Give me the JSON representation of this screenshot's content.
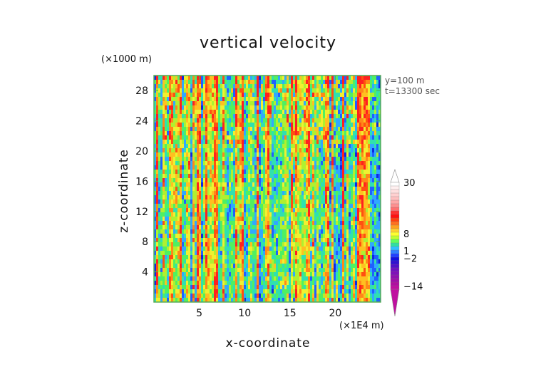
{
  "chart_data": {
    "type": "heatmap",
    "title": "vertical velocity",
    "xlabel": "x-coordinate",
    "ylabel": "z-coordinate",
    "x_unit": "(×1E4 m)",
    "y_unit": "(×1000 m)",
    "annotations": [
      "y=100 m",
      "t=13300 sec"
    ],
    "xlim": [
      0,
      25
    ],
    "ylim": [
      0,
      30
    ],
    "x_ticks": [
      5,
      10,
      15,
      20
    ],
    "y_ticks": [
      4,
      8,
      12,
      16,
      20,
      24,
      28
    ],
    "colorbar": {
      "labels": [
        "30",
        "8",
        "1",
        "−2",
        "−14"
      ],
      "label_values": [
        30,
        8,
        1,
        -2,
        -14
      ],
      "extend": "both",
      "colors_top_to_bottom": [
        "#ffffff",
        "#fff0f0",
        "#ffe0e0",
        "#ffd0d0",
        "#ffc0c0",
        "#ffa8a8",
        "#ff9090",
        "#ff7070",
        "#ff3030",
        "#ff1010",
        "#ff4010",
        "#ff7020",
        "#ffa020",
        "#ffd030",
        "#ffff30",
        "#c0ff30",
        "#60ff60",
        "#30e0a0",
        "#30c0ff",
        "#3080ff",
        "#2040ff",
        "#1010e0",
        "#3010d0",
        "#5010c8",
        "#7010c0",
        "#8010b8",
        "#9010b0",
        "#a010a8",
        "#b010a0",
        "#c010a0"
      ]
    },
    "colors": {
      "background": "#ffffff",
      "axis": "#55aa55",
      "text": "#111111",
      "info_text": "#555555"
    }
  }
}
